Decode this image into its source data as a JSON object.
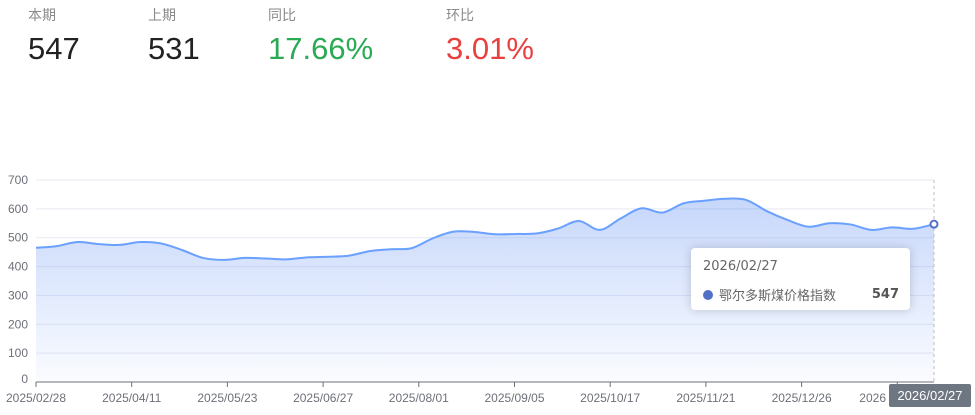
{
  "stats": [
    {
      "label": "本期",
      "value": "547",
      "color": "#222222"
    },
    {
      "label": "上期",
      "value": "531",
      "color": "#222222"
    },
    {
      "label": "同比",
      "value": "17.66%",
      "color": "#2aaa55"
    },
    {
      "label": "环比",
      "value": "3.01%",
      "color": "#e8403f"
    }
  ],
  "tooltip": {
    "date": "2026/02/27",
    "series": "鄂尔多斯煤价格指数",
    "value": "547",
    "marker_color": "#5470c6"
  },
  "axis_pointer_label": "2026/02/27",
  "chart_data": {
    "type": "area",
    "ylim": [
      0,
      700
    ],
    "y_ticks": [
      "0",
      "100",
      "200",
      "300",
      "400",
      "500",
      "600",
      "700"
    ],
    "x_tick_labels": [
      "2025/02/28",
      "2025/04/11",
      "2025/05/23",
      "2025/06/27",
      "2025/08/01",
      "2025/09/05",
      "2025/10/17",
      "2025/11/21",
      "2025/12/26",
      "2026"
    ],
    "x_range": [
      "2025/02/28",
      "2026/02/27"
    ],
    "series": [
      {
        "name": "鄂尔多斯煤价格指数",
        "color": "#6aa0ff",
        "values": [
          465,
          471,
          485,
          478,
          475,
          485,
          480,
          457,
          430,
          423,
          430,
          428,
          425,
          432,
          434,
          438,
          454,
          460,
          464,
          498,
          521,
          520,
          512,
          513,
          515,
          532,
          558,
          527,
          567,
          602,
          587,
          619,
          628,
          635,
          631,
          592,
          561,
          538,
          550,
          546,
          527,
          536,
          531,
          547
        ]
      }
    ],
    "grid": true
  }
}
